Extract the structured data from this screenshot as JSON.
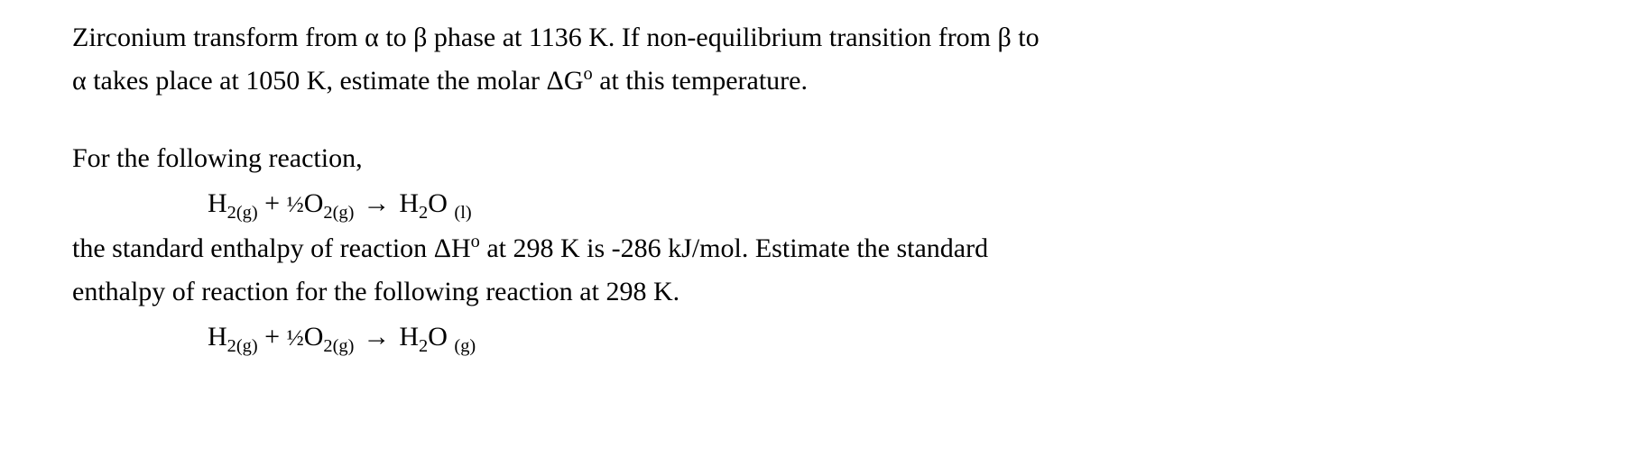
{
  "text_color": "#000000",
  "background_color": "#ffffff",
  "font_family": "Times New Roman",
  "base_font_size_pt": 22,
  "q1": {
    "line1_a": "Zirconium transform from ",
    "alpha1": "α",
    "line1_b": " to ",
    "beta1": "β",
    "line1_c": " phase at 1136 K. If non-equilibrium transition from ",
    "beta2": "β",
    "line1_d": " to",
    "line2_a": "α",
    "line2_b": " takes place at 1050 K, estimate the molar ",
    "dG": "ΔG",
    "dG_sup": "o",
    "line2_c": " at this temperature."
  },
  "q2": {
    "intro": "For the following reaction,",
    "eq1": {
      "H2": "H",
      "H2_sub": "2",
      "H2_phase": "(g)",
      "plus": " + ",
      "half": "½",
      "O2": "O",
      "O2_sub": "2",
      "O2_phase": "(g)",
      "arrow": "→",
      "H2O_H": "H",
      "H2O_Hsub": "2",
      "H2O_O": "O ",
      "H2O_phase": "(l)"
    },
    "mid1_a": "the standard enthalpy of reaction ",
    "dH": "ΔH",
    "dH_sup": "o",
    "mid1_b": " at 298 K is -286 kJ/mol. Estimate the standard",
    "mid2": "enthalpy of reaction for the following reaction at 298 K.",
    "eq2": {
      "H2": "H",
      "H2_sub": "2",
      "H2_phase": "(g)",
      "plus": " + ",
      "half": "½",
      "O2": "O",
      "O2_sub": "2",
      "O2_phase": "(g)",
      "arrow": "→",
      "H2O_H": "H",
      "H2O_Hsub": "2",
      "H2O_O": "O ",
      "H2O_phase": "(g)"
    }
  }
}
